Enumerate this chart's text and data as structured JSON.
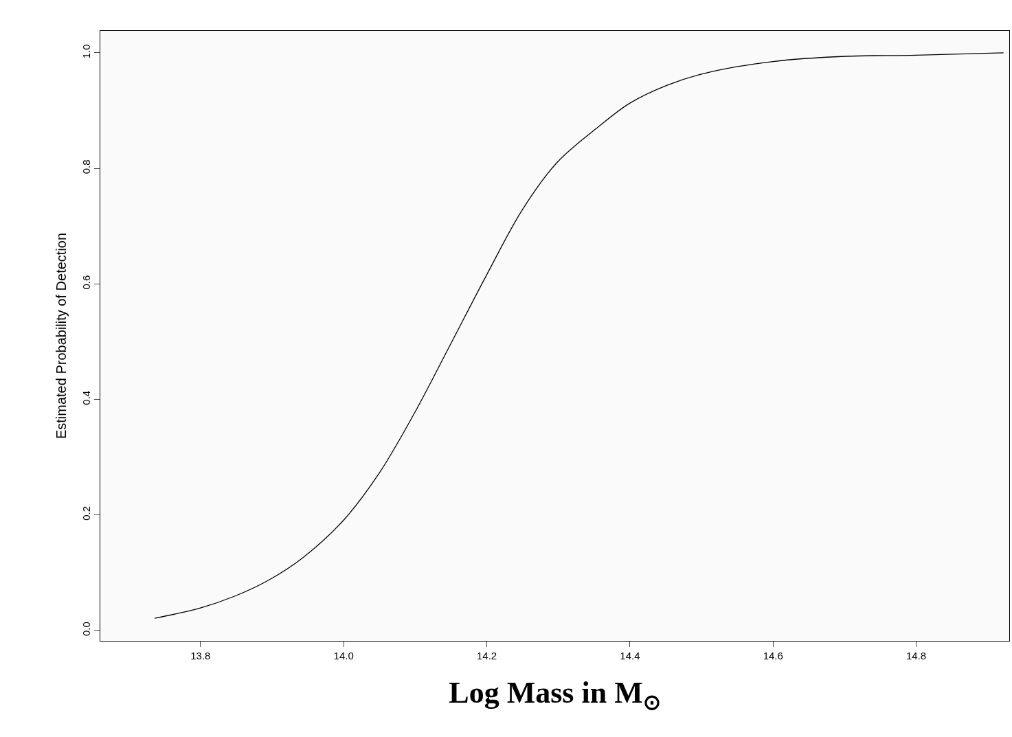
{
  "chart_data": {
    "type": "line",
    "xlabel": "Log Mass in M$_{⊙}$",
    "ylabel": "Estimated Probability of Detection",
    "x": [
      13.736,
      13.8,
      13.847,
      13.895,
      13.943,
      14.0,
      14.049,
      14.097,
      14.145,
      14.2,
      14.25,
      14.298,
      14.356,
      14.4,
      14.452,
      14.509,
      14.6,
      14.701,
      14.8,
      14.922
    ],
    "series": [
      {
        "color": "#000000",
        "values": [
          0.021,
          0.039,
          0.059,
          0.087,
          0.126,
          0.191,
          0.271,
          0.372,
          0.485,
          0.616,
          0.729,
          0.81,
          0.872,
          0.913,
          0.944,
          0.966,
          0.985,
          0.994,
          0.996,
          1.0
        ]
      }
    ],
    "xlim": [
      13.66,
      14.93
    ],
    "ylim": [
      -0.018,
      1.038
    ],
    "xticks": [
      13.8,
      {
        "value": 14,
        "label": "14.0"
      },
      14.2,
      14.4,
      14.6,
      14.8
    ],
    "yticks": [
      {
        "value": 0,
        "label": "0.0"
      },
      0.2,
      0.4,
      0.6,
      0.8,
      {
        "value": 1,
        "label": "1.0"
      }
    ],
    "marker": "none",
    "line_style": "solid"
  }
}
